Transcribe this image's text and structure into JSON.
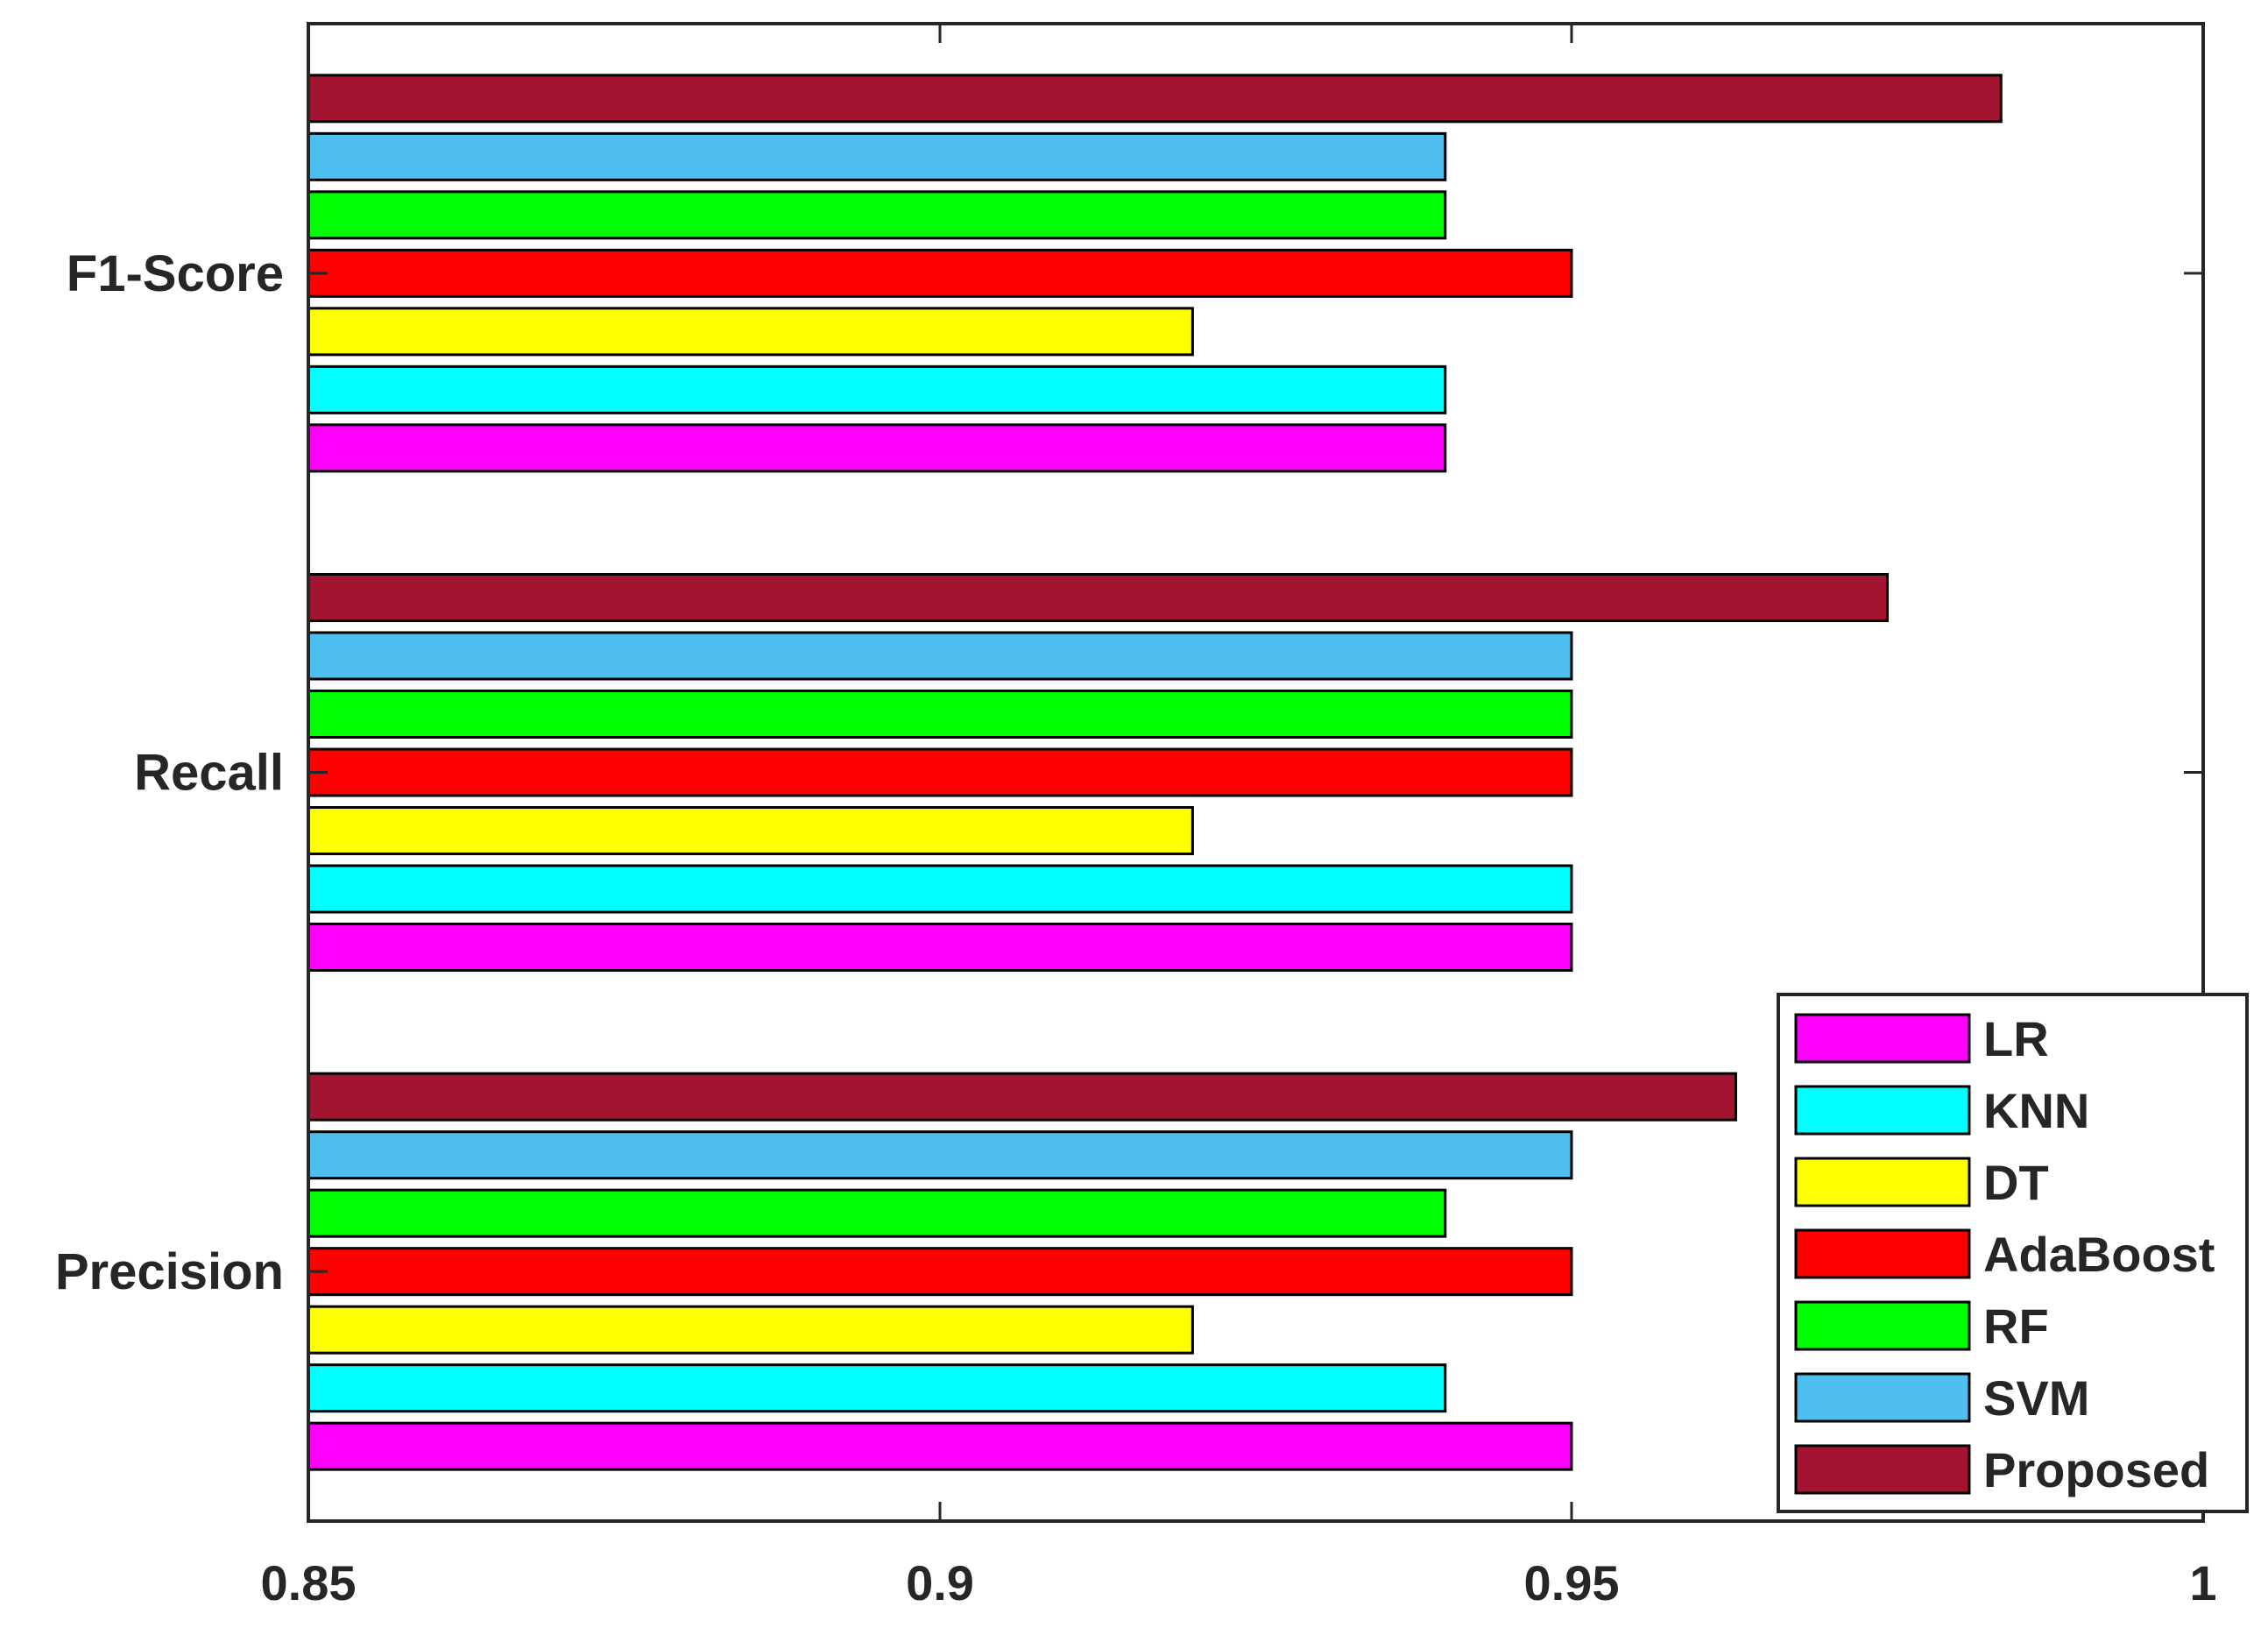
{
  "chart_data": {
    "type": "bar",
    "orientation": "horizontal",
    "categories": [
      "Precision",
      "Recall",
      "F1-Score"
    ],
    "series": [
      {
        "name": "LR",
        "color": "#FF00FF",
        "values": [
          0.95,
          0.95,
          0.94
        ]
      },
      {
        "name": "KNN",
        "color": "#00FFFF",
        "values": [
          0.94,
          0.95,
          0.94
        ]
      },
      {
        "name": "DT",
        "color": "#FFFF00",
        "values": [
          0.92,
          0.92,
          0.92
        ]
      },
      {
        "name": "AdaBoost",
        "color": "#FF0000",
        "values": [
          0.95,
          0.95,
          0.95
        ]
      },
      {
        "name": "RF",
        "color": "#00FF00",
        "values": [
          0.94,
          0.95,
          0.94
        ]
      },
      {
        "name": "SVM",
        "color": "#4DBEEE",
        "values": [
          0.95,
          0.95,
          0.94
        ]
      },
      {
        "name": "Proposed",
        "color": "#A2142F",
        "values": [
          0.963,
          0.975,
          0.984
        ]
      }
    ],
    "xlim": [
      0.85,
      1
    ],
    "xticks": [
      0.85,
      0.9,
      0.95,
      1
    ],
    "xtick_labels": [
      "0.85",
      "0.9",
      "0.95",
      "1"
    ],
    "title": "",
    "xlabel": "",
    "ylabel": "",
    "grid": false,
    "legend_position": "bottom-right"
  }
}
